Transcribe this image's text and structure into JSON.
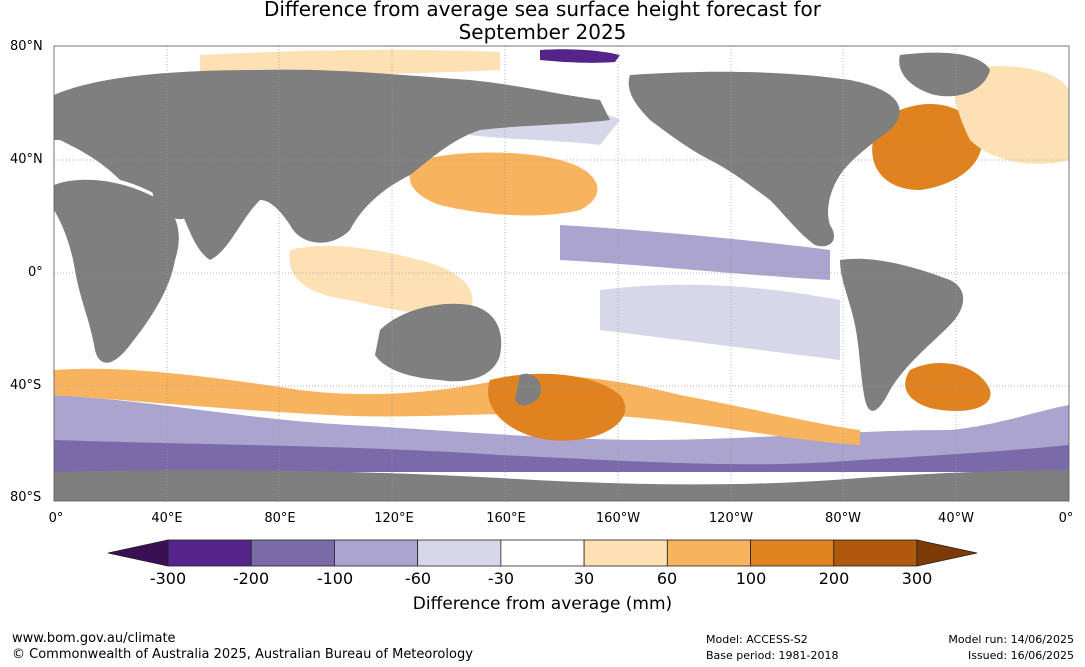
{
  "title_line1": "Difference from average sea surface height forecast for",
  "title_line2": "September 2025",
  "lat_labels": [
    "80°N",
    "40°N",
    "0°",
    "40°S",
    "80°S"
  ],
  "lon_labels": [
    "0°",
    "40°E",
    "80°E",
    "120°E",
    "160°E",
    "160°W",
    "120°W",
    "80°W",
    "40°W",
    "0°"
  ],
  "colorbar": {
    "label": "Difference from average (mm)",
    "ticks": [
      "-300",
      "-200",
      "-100",
      "-60",
      "-30",
      "30",
      "60",
      "100",
      "200",
      "300"
    ],
    "colors": [
      "#3b0f55",
      "#54248a",
      "#7b6aaa",
      "#aaa4cf",
      "#d7d7ea",
      "#ffffff",
      "#fde0b3",
      "#f8b35e",
      "#e0821f",
      "#b0580c",
      "#7c3a06"
    ]
  },
  "map_colors": {
    "land": "#7f7f7f",
    "ocean": "#ffffff",
    "ice": "#ffffff"
  },
  "footer": {
    "website": "www.bom.gov.au/climate",
    "copyright": "© Commonwealth of Australia 2025, Australian Bureau of Meteorology",
    "model": "Model: ACCESS-S2",
    "base_period": "Base period: 1981-2018",
    "model_run": "Model run: 14/06/2025",
    "issued": "Issued: 16/06/2025"
  }
}
